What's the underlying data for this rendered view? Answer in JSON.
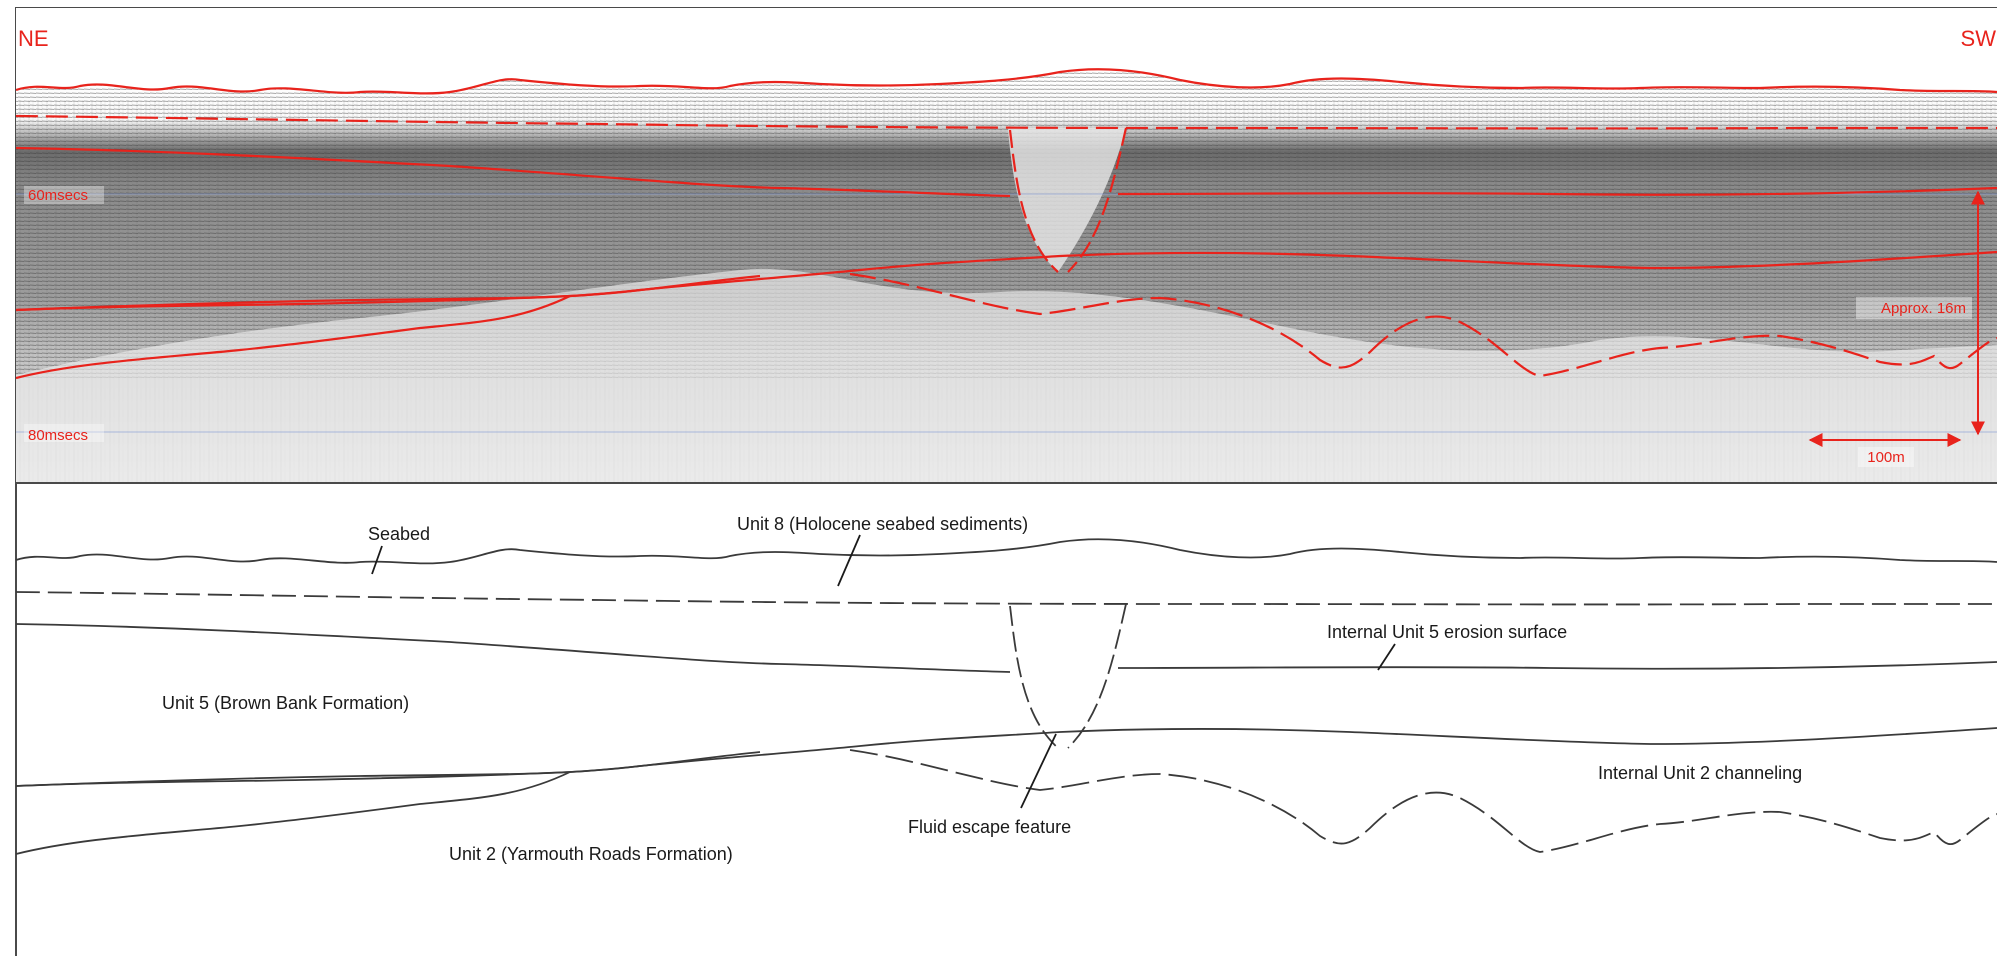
{
  "seismic_panel": {
    "direction_left": "NE",
    "direction_right": "SW",
    "time_label_upper": "60msecs",
    "time_label_lower": "80msecs",
    "vertical_scale_label": "Approx. 16m",
    "horizontal_scale_label": "100m"
  },
  "interpretation_panel": {
    "labels": {
      "seabed": "Seabed",
      "unit8": "Unit 8 (Holocene seabed sediments)",
      "unit5": "Unit 5 (Brown Bank Formation)",
      "unit5_erosion": "Internal Unit 5 erosion surface",
      "unit2": "Unit 2 (Yarmouth Roads Formation)",
      "fluid_escape": "Fluid escape feature",
      "unit2_channeling": "Internal Unit 2 channeling"
    }
  },
  "colors": {
    "interpretation_red": "#e8231c",
    "line_dark": "#3a3a3a",
    "frame": "#4a4a4a",
    "seismic_background": "#dcdcdc"
  }
}
